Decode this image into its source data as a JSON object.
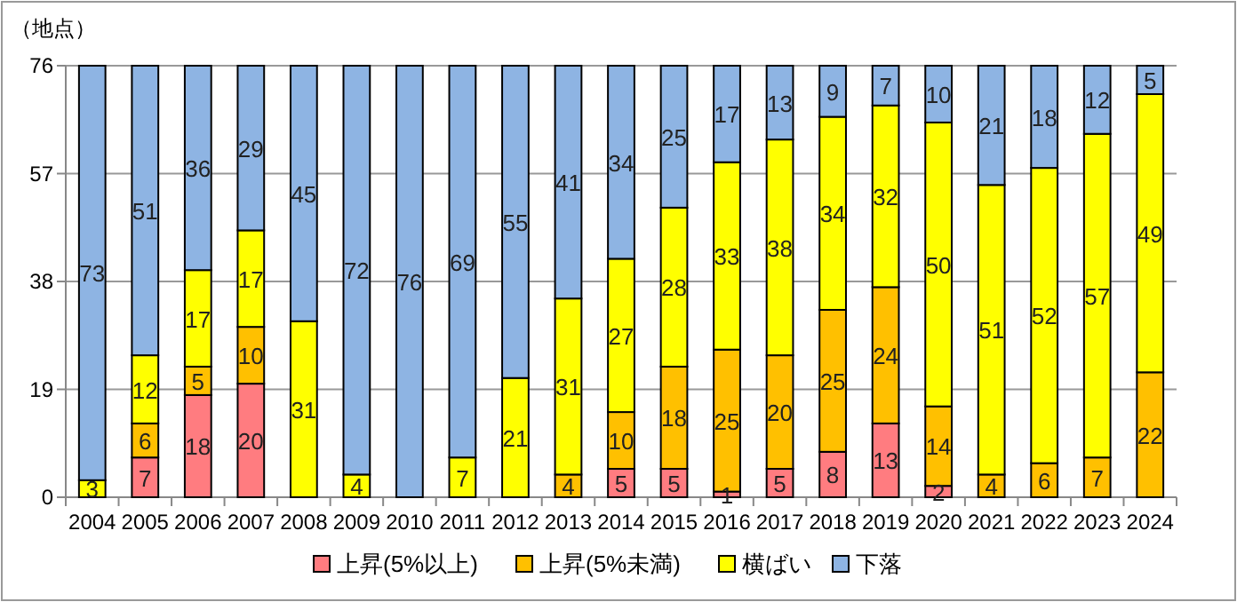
{
  "chart_data": {
    "type": "bar",
    "stacked": true,
    "ylabel": "（地点）",
    "categories": [
      "2004",
      "2005",
      "2006",
      "2007",
      "2008",
      "2009",
      "2010",
      "2011",
      "2012",
      "2013",
      "2014",
      "2015",
      "2016",
      "2017",
      "2018",
      "2019",
      "2020",
      "2021",
      "2022",
      "2023",
      "2024"
    ],
    "series": [
      {
        "name": "上昇(5%以上)",
        "color": "#ff7c80",
        "values": [
          0,
          7,
          18,
          20,
          0,
          0,
          0,
          0,
          0,
          0,
          5,
          5,
          1,
          5,
          8,
          13,
          2,
          0,
          0,
          0,
          0
        ],
        "value_labels": [
          null,
          "7",
          "18",
          "20",
          null,
          null,
          null,
          null,
          null,
          null,
          "5",
          "5",
          "1",
          "5",
          "8",
          "13",
          "2",
          null,
          null,
          null,
          null
        ]
      },
      {
        "name": "上昇(5%未満)",
        "color": "#ffc000",
        "values": [
          0,
          6,
          5,
          10,
          0,
          0,
          0,
          0,
          0,
          4,
          10,
          18,
          25,
          20,
          25,
          24,
          14,
          4,
          6,
          7,
          22
        ],
        "value_labels": [
          null,
          "6",
          "5",
          "10",
          null,
          null,
          null,
          null,
          null,
          "4",
          "10",
          "18",
          "25",
          "20",
          "25",
          "24",
          "14",
          "4",
          "6",
          "7",
          "22"
        ]
      },
      {
        "name": "横ばい",
        "color": "#ffff00",
        "values": [
          3,
          12,
          17,
          17,
          31,
          4,
          0,
          7,
          21,
          31,
          27,
          28,
          33,
          38,
          34,
          32,
          50,
          51,
          52,
          57,
          49
        ],
        "value_labels": [
          "3",
          "12",
          "17",
          "17",
          "31",
          "4",
          null,
          "7",
          "21",
          "31",
          "27",
          "28",
          "33",
          "38",
          "34",
          "32",
          "50",
          "51",
          "52",
          "57",
          "49"
        ]
      },
      {
        "name": "下落",
        "color": "#8eb4e3",
        "values": [
          73,
          51,
          36,
          29,
          45,
          72,
          76,
          69,
          55,
          41,
          34,
          25,
          17,
          13,
          9,
          7,
          10,
          21,
          18,
          12,
          5
        ],
        "value_labels": [
          "73",
          "51",
          "36",
          "29",
          "45",
          "72",
          "76",
          "69",
          "55",
          "41",
          "34",
          "25",
          "17",
          "13",
          "9",
          "7",
          "10",
          "21",
          "18",
          "12",
          "5"
        ]
      }
    ],
    "ylim": [
      0,
      76
    ],
    "yticks": [
      0,
      19,
      38,
      57,
      76
    ],
    "grid": "y",
    "legend": "bottom"
  }
}
